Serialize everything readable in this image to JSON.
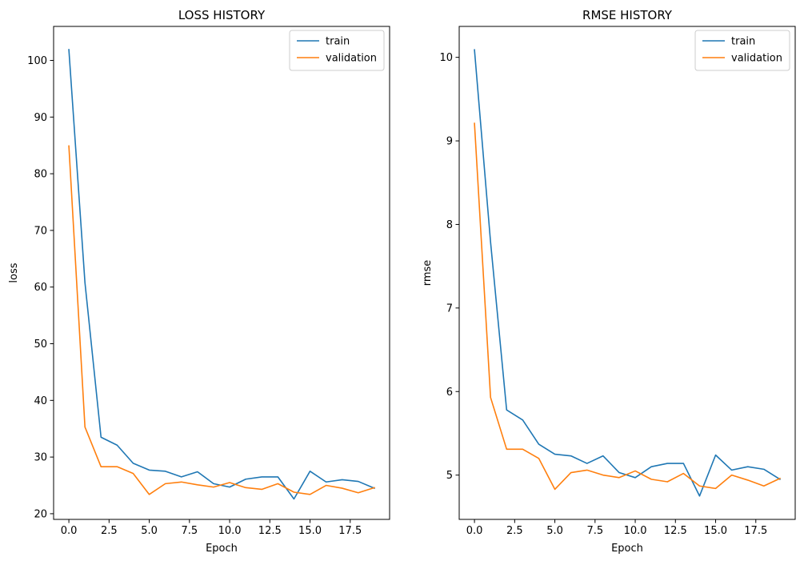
{
  "chart_data": [
    {
      "type": "line",
      "title": "LOSS HISTORY",
      "xlabel": "Epoch",
      "ylabel": "loss",
      "xlim": [
        -0.95,
        19.95
      ],
      "ylim": [
        19.0,
        106.0
      ],
      "xticks": [
        0.0,
        2.5,
        5.0,
        7.5,
        10.0,
        12.5,
        15.0,
        17.5
      ],
      "xtick_labels": [
        "0.0",
        "2.5",
        "5.0",
        "7.5",
        "10.0",
        "12.5",
        "15.0",
        "17.5"
      ],
      "yticks": [
        20,
        30,
        40,
        50,
        60,
        70,
        80,
        90,
        100
      ],
      "ytick_labels": [
        "20",
        "30",
        "40",
        "50",
        "60",
        "70",
        "80",
        "90",
        "100"
      ],
      "grid": false,
      "legend_position": "top-right",
      "x": [
        0,
        1,
        2,
        3,
        4,
        5,
        6,
        7,
        8,
        9,
        10,
        11,
        12,
        13,
        14,
        15,
        16,
        17,
        18,
        19
      ],
      "series": [
        {
          "name": "train",
          "color": "#1f77b4",
          "values": [
            101.9,
            60.8,
            33.5,
            32.1,
            28.9,
            27.7,
            27.5,
            26.5,
            27.4,
            25.3,
            24.7,
            26.1,
            26.5,
            26.5,
            22.6,
            27.5,
            25.6,
            26.0,
            25.7,
            24.5
          ]
        },
        {
          "name": "validation",
          "color": "#ff7f0e",
          "values": [
            84.9,
            35.3,
            28.3,
            28.3,
            27.1,
            23.4,
            25.3,
            25.6,
            25.1,
            24.7,
            25.5,
            24.6,
            24.3,
            25.3,
            23.8,
            23.4,
            25.0,
            24.5,
            23.7,
            24.6
          ]
        }
      ]
    },
    {
      "type": "line",
      "title": "RMSE HISTORY",
      "xlabel": "Epoch",
      "ylabel": "rmse",
      "xlim": [
        -0.95,
        19.95
      ],
      "ylim": [
        4.47,
        10.37
      ],
      "xticks": [
        0.0,
        2.5,
        5.0,
        7.5,
        10.0,
        12.5,
        15.0,
        17.5
      ],
      "xtick_labels": [
        "0.0",
        "2.5",
        "5.0",
        "7.5",
        "10.0",
        "12.5",
        "15.0",
        "17.5"
      ],
      "yticks": [
        5,
        6,
        7,
        8,
        9,
        10
      ],
      "ytick_labels": [
        "5",
        "6",
        "7",
        "8",
        "9",
        "10"
      ],
      "grid": false,
      "legend_position": "top-right",
      "x": [
        0,
        1,
        2,
        3,
        4,
        5,
        6,
        7,
        8,
        9,
        10,
        11,
        12,
        13,
        14,
        15,
        16,
        17,
        18,
        19
      ],
      "series": [
        {
          "name": "train",
          "color": "#1f77b4",
          "values": [
            10.09,
            7.79,
            5.78,
            5.66,
            5.37,
            5.25,
            5.23,
            5.14,
            5.23,
            5.03,
            4.97,
            5.1,
            5.14,
            5.14,
            4.75,
            5.24,
            5.06,
            5.1,
            5.07,
            4.95
          ]
        },
        {
          "name": "validation",
          "color": "#ff7f0e",
          "values": [
            9.21,
            5.93,
            5.31,
            5.31,
            5.2,
            4.83,
            5.03,
            5.06,
            5.0,
            4.97,
            5.05,
            4.95,
            4.92,
            5.02,
            4.87,
            4.84,
            5.0,
            4.94,
            4.87,
            4.96
          ]
        }
      ]
    }
  ]
}
